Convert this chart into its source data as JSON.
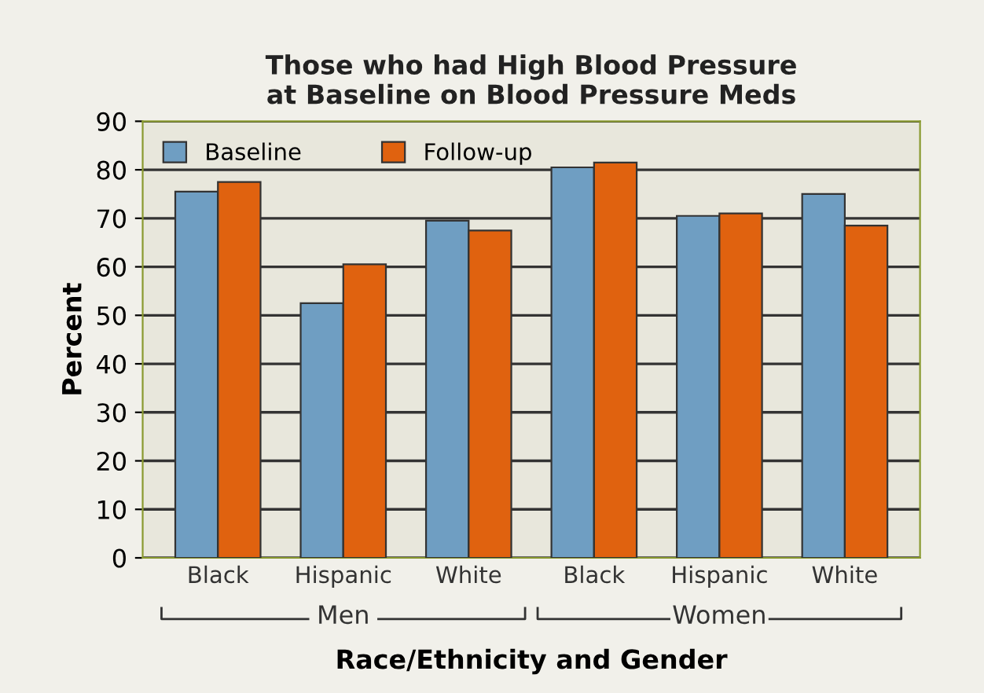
{
  "chart_data": {
    "type": "bar",
    "title": "Those who had High Blood Pressure\nat Baseline on Blood Pressure Meds",
    "xlabel": "Race/Ethnicity and Gender",
    "ylabel": "Percent",
    "categories": [
      "Black",
      "Hispanic",
      "White",
      "Black",
      "Hispanic",
      "White"
    ],
    "series": [
      {
        "name": "Baseline",
        "color": "#6f9ec2",
        "values": [
          75.5,
          52.5,
          69.5,
          80.5,
          70.5,
          75
        ]
      },
      {
        "name": "Follow-up",
        "color": "#e0620f",
        "values": [
          77.5,
          60.5,
          67.5,
          81.5,
          71,
          68.5
        ]
      }
    ],
    "annotations": [
      "Men",
      "Women"
    ],
    "ylim": [
      0,
      90
    ],
    "yticks": [
      0,
      10,
      20,
      30,
      40,
      50,
      60,
      70,
      80,
      90
    ],
    "grid": "y",
    "legend": "top left"
  }
}
